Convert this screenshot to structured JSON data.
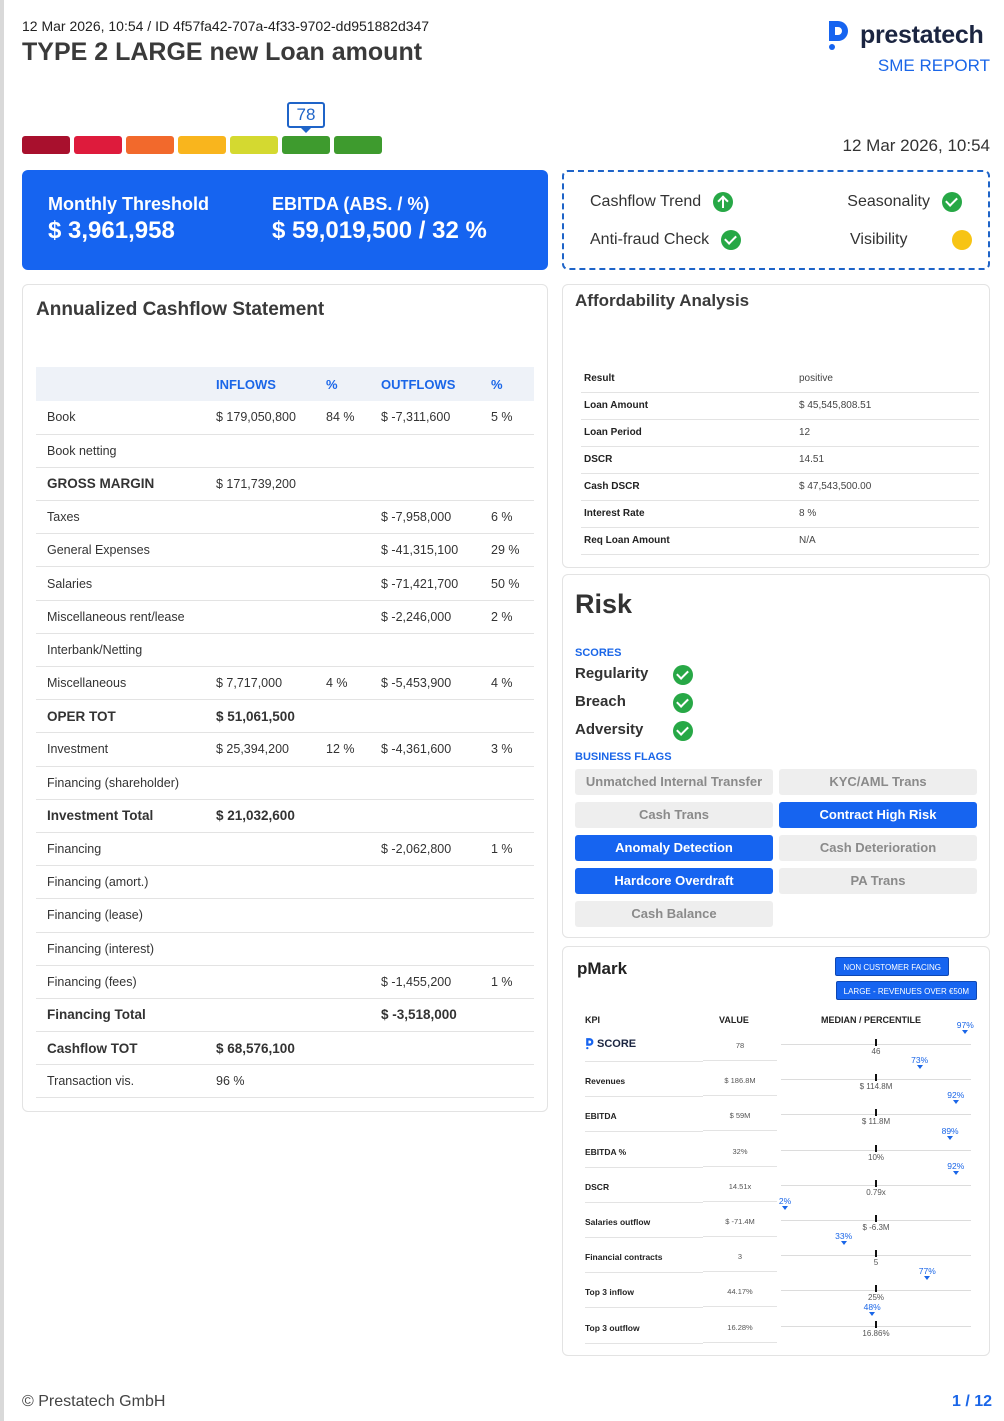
{
  "header": {
    "meta": "12 Mar 2026, 10:54 / ID 4f57fa42-707a-4f33-9702-dd951882d347",
    "title": "TYPE 2 LARGE new Loan amount",
    "brand": "prestatech",
    "report_type": "SME REPORT",
    "datetime": "12 Mar 2026, 10:54"
  },
  "score": {
    "value": "78",
    "scale_colors": [
      "#a8102d",
      "#de1b3c",
      "#f2692c",
      "#f9b51d",
      "#d4d930",
      "#3e9b2e",
      "#3e9b2e"
    ],
    "active_segment": 5
  },
  "kpis": [
    {
      "label": "Monthly Threshold",
      "value": "$ 3,961,958"
    },
    {
      "label": "EBITDA (ABS. / %)",
      "value": "$ 59,019,500 / 32 %"
    }
  ],
  "checks": [
    {
      "label": "Cashflow Trend",
      "icon": "arrow-up-icon",
      "status": "up"
    },
    {
      "label": "Seasonality",
      "icon": "check-icon",
      "status": "ok"
    },
    {
      "label": "Anti-fraud Check",
      "icon": "check-icon",
      "status": "ok"
    },
    {
      "label": "Visibility",
      "icon": "warning-dot-icon",
      "status": "warn"
    }
  ],
  "cashflow": {
    "title": "Annualized Cashflow Statement",
    "headers": [
      "",
      "INFLOWS",
      "%",
      "OUTFLOWS",
      "%"
    ],
    "rows": [
      {
        "label": "Book",
        "in": "$ 179,050,800",
        "in_pct": "84 %",
        "out": "$ -7,311,600",
        "out_pct": "5 %",
        "bold": false
      },
      {
        "label": "Book netting",
        "in": "",
        "in_pct": "",
        "out": "",
        "out_pct": "",
        "bold": false
      },
      {
        "label": "GROSS MARGIN",
        "in": "$ 171,739,200",
        "in_pct": "",
        "out": "",
        "out_pct": "",
        "bold": true,
        "plain_value": true
      },
      {
        "label": "Taxes",
        "in": "",
        "in_pct": "",
        "out": "$ -7,958,000",
        "out_pct": "6 %",
        "bold": false
      },
      {
        "label": "General Expenses",
        "in": "",
        "in_pct": "",
        "out": "$ -41,315,100",
        "out_pct": "29 %",
        "bold": false
      },
      {
        "label": "Salaries",
        "in": "",
        "in_pct": "",
        "out": "$ -71,421,700",
        "out_pct": "50 %",
        "bold": false
      },
      {
        "label": "Miscellaneous rent/lease",
        "in": "",
        "in_pct": "",
        "out": "$ -2,246,000",
        "out_pct": "2 %",
        "bold": false
      },
      {
        "label": "Interbank/Netting",
        "in": "",
        "in_pct": "",
        "out": "",
        "out_pct": "",
        "bold": false
      },
      {
        "label": "Miscellaneous",
        "in": "$ 7,717,000",
        "in_pct": "4 %",
        "out": "$ -5,453,900",
        "out_pct": "4 %",
        "bold": false
      },
      {
        "label": "OPER TOT",
        "in": "$ 51,061,500",
        "in_pct": "",
        "out": "",
        "out_pct": "",
        "bold": true
      },
      {
        "label": "Investment",
        "in": "$ 25,394,200",
        "in_pct": "12 %",
        "out": "$ -4,361,600",
        "out_pct": "3 %",
        "bold": false
      },
      {
        "label": "Financing (shareholder)",
        "in": "",
        "in_pct": "",
        "out": "",
        "out_pct": "",
        "bold": false
      },
      {
        "label": "Investment Total",
        "in": "$ 21,032,600",
        "in_pct": "",
        "out": "",
        "out_pct": "",
        "bold": true
      },
      {
        "label": "Financing",
        "in": "",
        "in_pct": "",
        "out": "$ -2,062,800",
        "out_pct": "1 %",
        "bold": false
      },
      {
        "label": "Financing (amort.)",
        "in": "",
        "in_pct": "",
        "out": "",
        "out_pct": "",
        "bold": false
      },
      {
        "label": "Financing (lease)",
        "in": "",
        "in_pct": "",
        "out": "",
        "out_pct": "",
        "bold": false
      },
      {
        "label": "Financing (interest)",
        "in": "",
        "in_pct": "",
        "out": "",
        "out_pct": "",
        "bold": false
      },
      {
        "label": "Financing (fees)",
        "in": "",
        "in_pct": "",
        "out": "$ -1,455,200",
        "out_pct": "1 %",
        "bold": false
      },
      {
        "label": "Financing Total",
        "in": "",
        "in_pct": "",
        "out": "$ -3,518,000",
        "out_pct": "",
        "bold": true
      },
      {
        "label": "Cashflow TOT",
        "in": "$ 68,576,100",
        "in_pct": "",
        "out": "",
        "out_pct": "",
        "bold": true
      },
      {
        "label": "Transaction vis.",
        "in": "96 %",
        "in_pct": "",
        "out": "",
        "out_pct": "",
        "bold": false
      }
    ]
  },
  "affordability": {
    "title": "Affordability Analysis",
    "rows": [
      {
        "label": "Result",
        "value": "positive"
      },
      {
        "label": "Loan Amount",
        "value": "$ 45,545,808.51"
      },
      {
        "label": "Loan Period",
        "value": "12"
      },
      {
        "label": "DSCR",
        "value": "14.51"
      },
      {
        "label": "Cash DSCR",
        "value": "$ 47,543,500.00"
      },
      {
        "label": "Interest Rate",
        "value": "8 %"
      },
      {
        "label": "Req Loan Amount",
        "value": "N/A"
      }
    ]
  },
  "risk": {
    "title": "Risk",
    "scores_label": "SCORES",
    "scores": [
      {
        "label": "Regularity",
        "status": "ok"
      },
      {
        "label": "Breach",
        "status": "ok"
      },
      {
        "label": "Adversity",
        "status": "ok"
      }
    ],
    "flags_label": "BUSINESS FLAGS",
    "flags": [
      {
        "label": "Unmatched Internal Transfer",
        "active": false
      },
      {
        "label": "KYC/AML Trans",
        "active": false
      },
      {
        "label": "Cash Trans",
        "active": false
      },
      {
        "label": "Contract High Risk",
        "active": true
      },
      {
        "label": "Anomaly Detection",
        "active": true
      },
      {
        "label": "Cash Deterioration",
        "active": false
      },
      {
        "label": "Hardcore Overdraft",
        "active": true
      },
      {
        "label": "PA Trans",
        "active": false
      },
      {
        "label": "Cash Balance",
        "active": false
      }
    ]
  },
  "pmark": {
    "title": "pMark",
    "badges": [
      "NON CUSTOMER FACING",
      "LARGE - REVENUES OVER €50M"
    ],
    "headers": {
      "kpi": "KPI",
      "value": "VALUE",
      "median": "MEDIAN / PERCENTILE"
    },
    "score_label": "SCORE",
    "rows": [
      {
        "kpi": "SCORE",
        "value": "78",
        "median": "46",
        "percentile": "97%",
        "pct_value": 97,
        "is_score": true
      },
      {
        "kpi": "Revenues",
        "value": "$ 186.8M",
        "median": "$ 114.8M",
        "percentile": "73%",
        "pct_value": 73
      },
      {
        "kpi": "EBITDA",
        "value": "$ 59M",
        "median": "$ 11.8M",
        "percentile": "92%",
        "pct_value": 92
      },
      {
        "kpi": "EBITDA %",
        "value": "32%",
        "median": "10%",
        "percentile": "89%",
        "pct_value": 89
      },
      {
        "kpi": "DSCR",
        "value": "14.51x",
        "median": "0.79x",
        "percentile": "92%",
        "pct_value": 92
      },
      {
        "kpi": "Salaries outflow",
        "value": "$ -71.4M",
        "median": "$ -6.3M",
        "percentile": "2%",
        "pct_value": 2
      },
      {
        "kpi": "Financial contracts",
        "value": "3",
        "median": "5",
        "percentile": "33%",
        "pct_value": 33
      },
      {
        "kpi": "Top 3 inflow",
        "value": "44.17%",
        "median": "25%",
        "percentile": "77%",
        "pct_value": 77
      },
      {
        "kpi": "Top 3 outflow",
        "value": "16.28%",
        "median": "16.86%",
        "percentile": "48%",
        "pct_value": 48
      }
    ]
  },
  "footer": {
    "copyright": "© Prestatech GmbH",
    "page": "1 / 12"
  }
}
